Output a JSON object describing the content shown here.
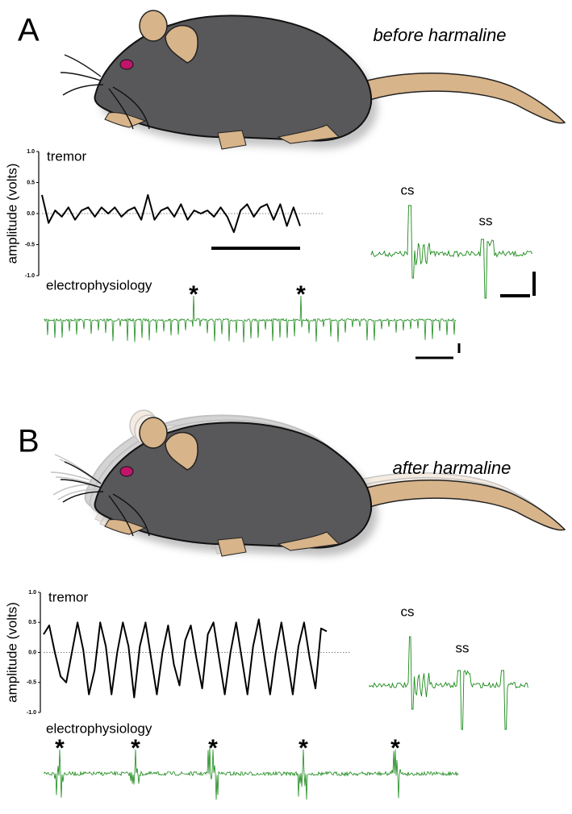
{
  "chart_data": [
    {
      "type": "line",
      "panel": "A",
      "title": "before harmaline",
      "y_label": "amplitude (volts)",
      "ephys_label": "electrophysiology",
      "spike_labels": [
        "cs",
        "ss"
      ],
      "asterisks": [
        "*",
        "*"
      ],
      "x": [
        0,
        1,
        2,
        3,
        4,
        5,
        6,
        7,
        8,
        9,
        10,
        11,
        12,
        13,
        14,
        15,
        16,
        17,
        18,
        19,
        20,
        21,
        22,
        23,
        24,
        25,
        26,
        27,
        28,
        29,
        30,
        31,
        32,
        33,
        34,
        35,
        36,
        37,
        38,
        39
      ],
      "xlim": [
        0,
        39
      ],
      "series": [
        {
          "name": "tremor",
          "color": "#000000",
          "values": [
            0.3,
            -0.15,
            0.05,
            -0.05,
            0.1,
            -0.1,
            0.05,
            0.1,
            -0.05,
            0.1,
            0,
            0.1,
            -0.05,
            0.05,
            0.1,
            -0.1,
            0.3,
            -0.1,
            0.05,
            0.1,
            -0.05,
            0.15,
            -0.1,
            0.05,
            0,
            0.05,
            -0.05,
            0.1,
            -0.05,
            -0.3,
            0.05,
            0.15,
            -0.05,
            0.1,
            0.15,
            -0.1,
            0.15,
            -0.2,
            0.1,
            -0.2
          ]
        }
      ],
      "ylim": [
        -1,
        1
      ],
      "yticks": [
        {
          "value": -1,
          "label": "-1.0"
        },
        {
          "value": -0.5,
          "label": "-0.5"
        },
        {
          "value": 0,
          "label": "0.0"
        },
        {
          "value": 0.5,
          "label": "0.5"
        },
        {
          "value": 1,
          "label": "1.0"
        }
      ],
      "trace_color": "#1a8a1a"
    },
    {
      "type": "line",
      "panel": "B",
      "title": "after harmaline",
      "y_label": "amplitude (volts)",
      "ephys_label": "electrophysiology",
      "spike_labels": [
        "cs",
        "ss"
      ],
      "asterisks": [
        "*",
        "*",
        "*",
        "*",
        "*"
      ],
      "x": [
        0,
        1,
        2,
        3,
        4,
        5,
        6,
        7,
        8,
        9,
        10,
        11,
        12,
        13,
        14,
        15,
        16,
        17,
        18,
        19,
        20,
        21,
        22,
        23,
        24,
        25,
        26,
        27,
        28,
        29,
        30,
        31,
        32,
        33,
        34,
        35,
        36,
        37,
        38,
        39,
        40,
        41,
        42,
        43,
        44,
        45,
        46,
        47,
        48,
        49,
        50
      ],
      "xlim": [
        0,
        50
      ],
      "series": [
        {
          "name": "tremor",
          "color": "#000000",
          "values": [
            0.3,
            0.45,
            0,
            -0.4,
            -0.5,
            0,
            0.5,
            0.05,
            -0.7,
            -0.3,
            0.5,
            0.1,
            -0.7,
            0.0,
            0.5,
            0.1,
            -0.75,
            0.1,
            0.5,
            -0.1,
            -0.7,
            0.0,
            0.45,
            -0.2,
            -0.55,
            0.2,
            0.45,
            -0.1,
            -0.6,
            0.3,
            0.5,
            -0.1,
            -0.7,
            0.0,
            0.5,
            -0.1,
            -0.7,
            0.1,
            0.55,
            -0.1,
            -0.7,
            0,
            0.5,
            -0.1,
            -0.7,
            0.1,
            0.5,
            -0.1,
            -0.6,
            0.4,
            0.35
          ]
        }
      ],
      "ylim": [
        -1,
        1
      ],
      "yticks": [
        {
          "value": -1,
          "label": "-1.0"
        },
        {
          "value": -0.5,
          "label": "-0.5"
        },
        {
          "value": 0,
          "label": "0.0"
        },
        {
          "value": 0.5,
          "label": "0.5"
        },
        {
          "value": 1,
          "label": "1.0"
        }
      ],
      "trace_color": "#1a8a1a"
    }
  ]
}
